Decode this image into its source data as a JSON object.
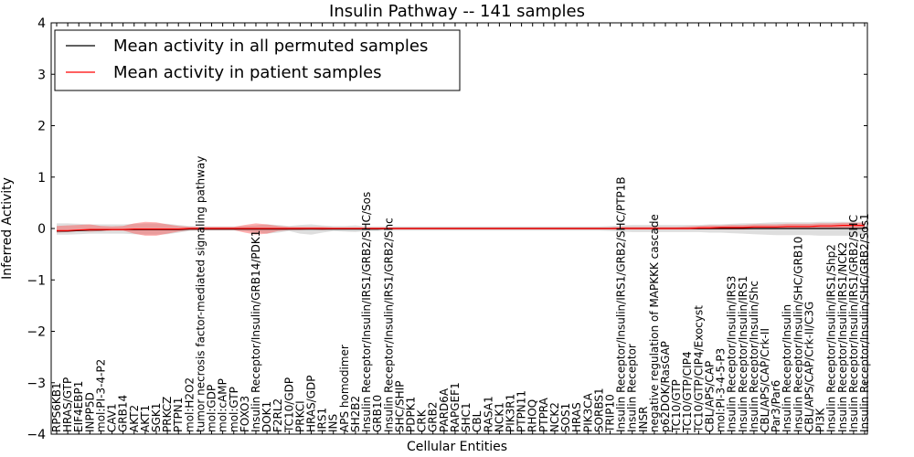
{
  "chart_data": {
    "type": "line",
    "title": "Insulin Pathway -- 141 samples",
    "xlabel": "Cellular Entities",
    "ylabel": "Inferred Activity",
    "ylim": [
      -4,
      4
    ],
    "yticks": [
      -4,
      -3,
      -2,
      -1,
      0,
      1,
      2,
      3,
      4
    ],
    "ytick_labels": [
      "−4",
      "−3",
      "−2",
      "−1",
      "0",
      "1",
      "2",
      "3",
      "4"
    ],
    "legend": {
      "placement": "top-left",
      "entries": [
        {
          "label": "Mean activity in all permuted samples",
          "color": "#000000"
        },
        {
          "label": "Mean activity in patient samples",
          "color": "#ff0000"
        }
      ]
    },
    "categories": [
      "RPS6KB1",
      "HRAS/GTP",
      "EIF4EBP1",
      "INPP5D",
      "mol:PI-3-4-P2",
      "CAV1",
      "GRB14",
      "AKT2",
      "AKT1",
      "SGK1",
      "PRKCZ",
      "PTPN1",
      "mol:H2O2",
      "tumor necrosis factor-mediated signaling pathway",
      "mol:GDP",
      "mol:cAMP",
      "mol:GTP",
      "FOXO3",
      "Insulin Receptor/Insulin/GRB14/PDK1",
      "DOK1",
      "F2RL2",
      "TC10/GDP",
      "PRKCI",
      "HRAS/GDP",
      "IRS1",
      "INS",
      "APS homodimer",
      "SH2B2",
      "Insulin Receptor/Insulin/IRS1/GRB2/SHC/Sos",
      "GRB10",
      "Insulin Receptor/Insulin/IRS1/GRB2/Shc",
      "SHC/SHIP",
      "PDPK1",
      "CRK",
      "GRB2",
      "PARD6A",
      "RAPGEF1",
      "SHC1",
      "CBL",
      "RASA1",
      "NCK1",
      "PIK3R1",
      "PTPN11",
      "RHOQ",
      "PTPRA",
      "NCK2",
      "SOS1",
      "HRAS",
      "PIK3CA",
      "SORBS1",
      "TRIP10",
      "Insulin Receptor/Insulin/IRS1/GRB2/SHC/PTP1B",
      "Insulin Receptor",
      "INSR",
      "negative regulation of MAPKKK cascade",
      "p62DOK/RasGAP",
      "TC10/GTP",
      "TC10/GTP/CIP4",
      "TC10/GTP/CIP4/Exocyst",
      "CBL/APS/CAP",
      "mol:PI-3-4-5-P3",
      "Insulin Receptor/Insulin/IRS3",
      "Insulin Receptor/Insulin/IRS1",
      "Insulin Receptor/Insulin/Shc",
      "CBL/APS/CAP/Crk-II",
      "Par3/Par6",
      "Insulin Receptor/Insulin",
      "Insulin Receptor/Insulin/SHC/GRB10",
      "CBL/APS/CAP/Crk-II/C3G",
      "PI3K",
      "Insulin Receptor/Insulin/IRS1/Shp2",
      "Insulin Receptor/Insulin/IRS1/NCK2",
      "Insulin Receptor/Insulin/IRS1/GRB2/SHC",
      "Insulin Receptor/Insulin/SHC/GRB2/Sos1"
    ],
    "series": [
      {
        "name": "Mean activity in all permuted samples",
        "color": "#000000",
        "values": [
          -0.05,
          -0.05,
          -0.04,
          -0.03,
          -0.03,
          -0.02,
          -0.02,
          -0.02,
          -0.02,
          -0.02,
          -0.02,
          -0.02,
          -0.01,
          -0.01,
          -0.01,
          -0.01,
          -0.01,
          -0.01,
          -0.01,
          -0.01,
          -0.01,
          -0.01,
          -0.01,
          -0.01,
          -0.01,
          -0.01,
          -0.01,
          -0.01,
          -0.01,
          -0.01,
          0,
          0,
          0,
          0,
          0,
          0,
          0,
          0,
          0,
          0,
          0,
          0,
          0,
          0,
          0,
          0,
          0,
          0,
          0,
          0,
          0,
          0,
          0,
          0,
          0,
          0,
          0,
          0,
          0,
          0,
          0,
          0,
          0,
          0,
          0,
          0,
          0,
          0,
          0,
          0,
          0,
          0,
          0,
          0
        ],
        "band_low": [
          -0.12,
          -0.12,
          -0.11,
          -0.1,
          -0.1,
          -0.1,
          -0.1,
          -0.11,
          -0.12,
          -0.12,
          -0.11,
          -0.08,
          -0.05,
          -0.04,
          -0.04,
          -0.04,
          -0.04,
          -0.05,
          -0.07,
          -0.1,
          -0.08,
          -0.05,
          -0.1,
          -0.12,
          -0.08,
          -0.05,
          -0.06,
          -0.07,
          -0.05,
          -0.05,
          -0.04,
          -0.04,
          -0.04,
          -0.04,
          -0.04,
          -0.04,
          -0.04,
          -0.04,
          -0.04,
          -0.04,
          -0.04,
          -0.04,
          -0.04,
          -0.04,
          -0.04,
          -0.04,
          -0.04,
          -0.04,
          -0.04,
          -0.04,
          -0.05,
          -0.06,
          -0.07,
          -0.07,
          -0.07,
          -0.07,
          -0.07,
          -0.07,
          -0.07,
          -0.08,
          -0.08,
          -0.09,
          -0.1,
          -0.11,
          -0.12,
          -0.13,
          -0.13,
          -0.13,
          -0.13,
          -0.14,
          -0.14,
          -0.14,
          -0.14,
          -0.14
        ],
        "band_high": [
          0.1,
          0.1,
          0.09,
          0.08,
          0.08,
          0.08,
          0.08,
          0.09,
          0.1,
          0.1,
          0.09,
          0.07,
          0.05,
          0.04,
          0.04,
          0.04,
          0.04,
          0.05,
          0.06,
          0.08,
          0.07,
          0.05,
          0.07,
          0.08,
          0.06,
          0.05,
          0.05,
          0.06,
          0.04,
          0.04,
          0.04,
          0.04,
          0.04,
          0.04,
          0.04,
          0.04,
          0.04,
          0.04,
          0.04,
          0.04,
          0.04,
          0.04,
          0.04,
          0.04,
          0.04,
          0.04,
          0.04,
          0.04,
          0.04,
          0.04,
          0.05,
          0.06,
          0.07,
          0.07,
          0.07,
          0.07,
          0.07,
          0.07,
          0.07,
          0.08,
          0.08,
          0.09,
          0.1,
          0.1,
          0.11,
          0.12,
          0.12,
          0.12,
          0.12,
          0.13,
          0.13,
          0.13,
          0.13,
          0.13
        ]
      },
      {
        "name": "Mean activity in patient samples",
        "color": "#ff0000",
        "values": [
          -0.04,
          -0.04,
          -0.03,
          -0.02,
          -0.02,
          -0.02,
          -0.02,
          -0.01,
          -0.01,
          -0.01,
          -0.01,
          -0.01,
          0,
          0,
          0,
          0,
          0,
          0,
          0,
          0,
          0,
          0,
          0,
          0,
          0,
          0,
          0,
          0,
          0,
          0,
          0,
          0,
          0,
          0,
          0,
          0,
          0,
          0,
          0,
          0,
          0,
          0,
          0,
          0,
          0,
          0,
          0,
          0,
          0,
          0,
          0,
          0,
          0,
          0,
          0,
          0,
          0,
          0,
          0.01,
          0.01,
          0.02,
          0.02,
          0.02,
          0.03,
          0.03,
          0.03,
          0.04,
          0.04,
          0.04,
          0.05,
          0.05,
          0.06,
          0.06,
          0.06
        ],
        "band_low": [
          -0.08,
          -0.07,
          -0.05,
          -0.06,
          -0.05,
          -0.04,
          -0.04,
          -0.1,
          -0.14,
          -0.14,
          -0.1,
          -0.06,
          -0.03,
          -0.03,
          -0.03,
          -0.03,
          -0.03,
          -0.08,
          -0.12,
          -0.1,
          -0.05,
          -0.03,
          -0.03,
          -0.02,
          -0.03,
          -0.02,
          -0.02,
          -0.02,
          -0.02,
          -0.02,
          -0.02,
          -0.02,
          -0.02,
          -0.02,
          -0.02,
          -0.02,
          -0.02,
          -0.02,
          -0.02,
          -0.02,
          -0.02,
          -0.02,
          -0.02,
          -0.02,
          -0.02,
          -0.02,
          -0.02,
          -0.02,
          -0.02,
          -0.02,
          -0.02,
          -0.02,
          -0.02,
          -0.02,
          -0.02,
          -0.02,
          -0.02,
          -0.02,
          -0.02,
          -0.02,
          -0.02,
          -0.02,
          -0.02,
          -0.01,
          -0.01,
          -0.01,
          0,
          0,
          0,
          0,
          0,
          0.01,
          0.01,
          0.01
        ],
        "band_high": [
          0.05,
          0.06,
          0.07,
          0.08,
          0.05,
          0.04,
          0.05,
          0.1,
          0.13,
          0.12,
          0.08,
          0.05,
          0.03,
          0.03,
          0.03,
          0.03,
          0.03,
          0.07,
          0.1,
          0.08,
          0.05,
          0.03,
          0.03,
          0.03,
          0.03,
          0.02,
          0.02,
          0.02,
          0.02,
          0.02,
          0.02,
          0.02,
          0.02,
          0.02,
          0.02,
          0.02,
          0.02,
          0.02,
          0.02,
          0.02,
          0.02,
          0.02,
          0.02,
          0.02,
          0.02,
          0.02,
          0.02,
          0.02,
          0.02,
          0.02,
          0.02,
          0.03,
          0.03,
          0.03,
          0.03,
          0.03,
          0.03,
          0.04,
          0.05,
          0.06,
          0.06,
          0.07,
          0.07,
          0.08,
          0.08,
          0.08,
          0.09,
          0.09,
          0.09,
          0.1,
          0.1,
          0.11,
          0.11,
          0.11
        ]
      }
    ]
  }
}
